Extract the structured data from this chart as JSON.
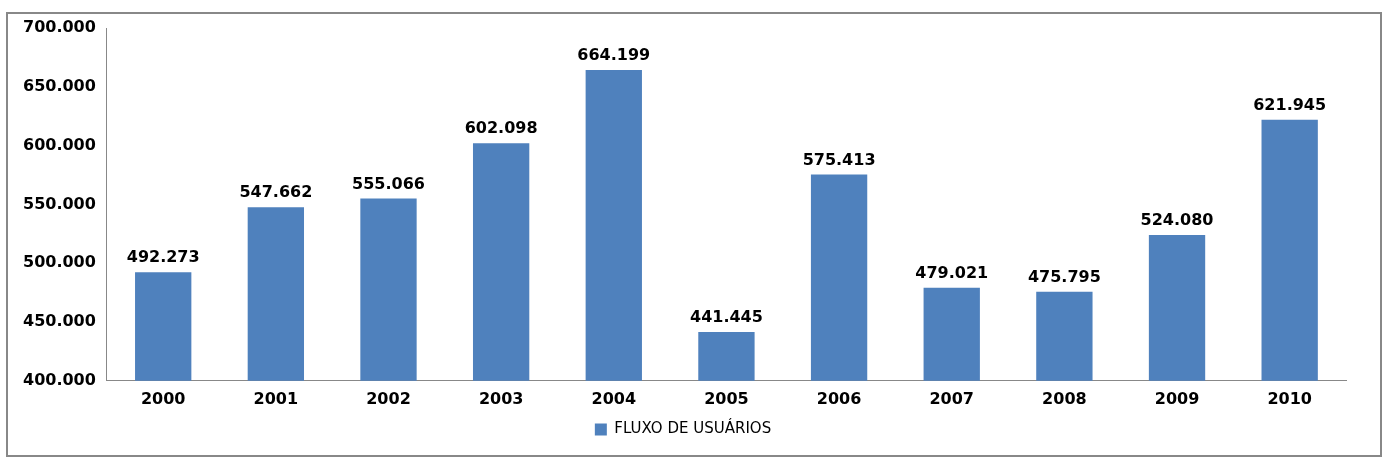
{
  "chart_data": {
    "type": "bar",
    "categories": [
      "2000",
      "2001",
      "2002",
      "2003",
      "2004",
      "2005",
      "2006",
      "2007",
      "2008",
      "2009",
      "2010"
    ],
    "series": [
      {
        "name": "FLUXO DE USUÁRIOS",
        "color": "#4f81bd",
        "values": [
          492273,
          547662,
          555066,
          602098,
          664199,
          441445,
          575413,
          479021,
          475795,
          524080,
          621945
        ],
        "value_labels": [
          "492.273",
          "547.662",
          "555.066",
          "602.098",
          "664.199",
          "441.445",
          "575.413",
          "479.021",
          "475.795",
          "524.080",
          "621.945"
        ]
      }
    ],
    "ylim": [
      400000,
      700000
    ],
    "yticks": [
      {
        "value": 400000,
        "label": "400.000"
      },
      {
        "value": 450000,
        "label": "450.000"
      },
      {
        "value": 500000,
        "label": "500.000"
      },
      {
        "value": 550000,
        "label": "550.000"
      },
      {
        "value": 600000,
        "label": "600.000"
      },
      {
        "value": 650000,
        "label": "650.000"
      },
      {
        "value": 700000,
        "label": "700.000"
      }
    ],
    "grid": false,
    "legend": "bottom"
  }
}
